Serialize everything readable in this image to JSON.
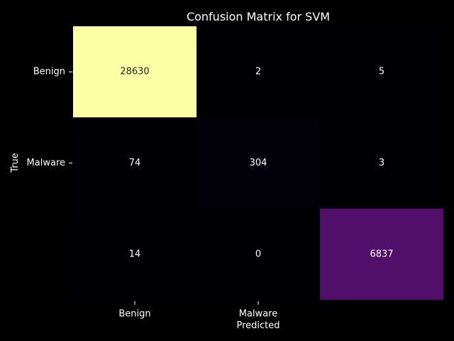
{
  "chart_data": {
    "type": "heatmap",
    "title": "Confusion Matrix for SVM",
    "xlabel": "Predicted",
    "ylabel": "True",
    "x_categories": [
      "Benign",
      "Malware",
      ""
    ],
    "y_categories": [
      "Benign",
      "Malware",
      ""
    ],
    "values": [
      [
        28630,
        2,
        5
      ],
      [
        74,
        304,
        3
      ],
      [
        14,
        0,
        6837
      ]
    ],
    "colormap": "inferno",
    "colorbar": false,
    "grid": false,
    "colors": {
      "background": "#000000",
      "text": "#ffffff",
      "low": "#000004",
      "high": "#fcffa4"
    }
  }
}
